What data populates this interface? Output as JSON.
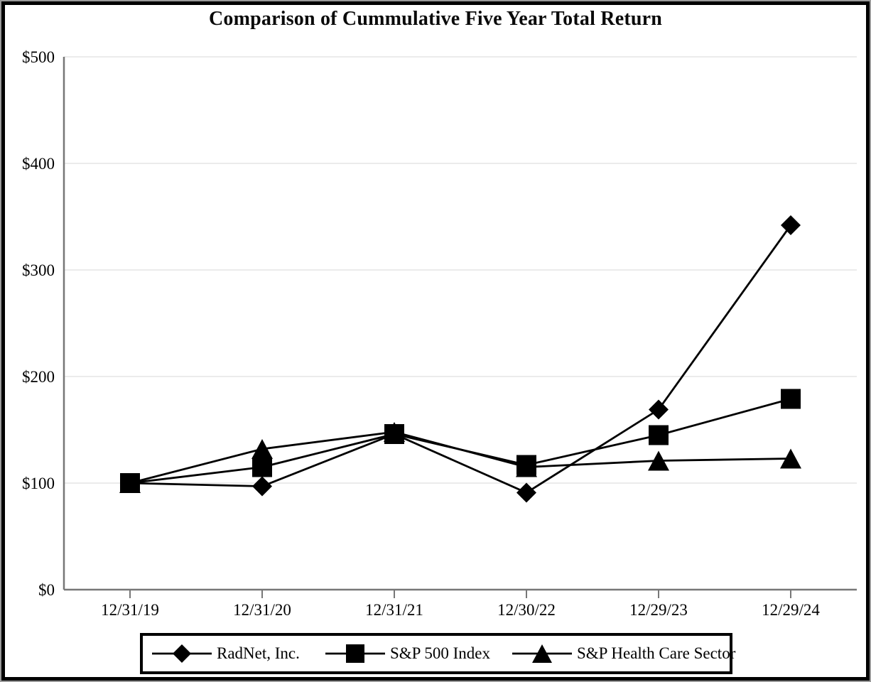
{
  "page": {
    "title": "Comparison of Cummulative Five Year Total Return"
  },
  "chart_data": {
    "type": "line",
    "title": "Comparison of Cummulative Five Year Total Return",
    "x_labels": [
      "12/31/19",
      "12/31/20",
      "12/31/21",
      "12/30/22",
      "12/29/23",
      "12/29/24"
    ],
    "y_ticks": [
      {
        "label": "$0",
        "value": 0
      },
      {
        "label": "$100",
        "value": 100
      },
      {
        "label": "$200",
        "value": 200
      },
      {
        "label": "$300",
        "value": 300
      },
      {
        "label": "$400",
        "value": 400
      },
      {
        "label": "$500",
        "value": 500
      }
    ],
    "ylim": [
      0,
      500
    ],
    "grid": "horizontal-only",
    "legend_position": "bottom",
    "series": [
      {
        "name": "RadNet, Inc.",
        "marker": "diamond",
        "color": "#000000",
        "values": [
          100,
          97,
          146,
          91,
          169,
          342
        ]
      },
      {
        "name": "S&P 500 Index",
        "marker": "square",
        "color": "#000000",
        "values": [
          100,
          115,
          146,
          117,
          145,
          179
        ]
      },
      {
        "name": "S&P Health Care Sector",
        "marker": "triangle",
        "color": "#000000",
        "values": [
          100,
          132,
          148,
          115,
          121,
          123
        ]
      }
    ]
  },
  "legend": {
    "entries": [
      {
        "label": "RadNet, Inc.",
        "marker": "diamond",
        "icon_name": "diamond-line-marker-icon"
      },
      {
        "label": "S&P 500 Index",
        "marker": "square",
        "icon_name": "square-line-marker-icon"
      },
      {
        "label": "S&P Health Care Sector",
        "marker": "triangle",
        "icon_name": "triangle-line-marker-icon"
      }
    ]
  },
  "colors": {
    "series": "#000000",
    "grid": "#e8e8e8",
    "axis": "#777777",
    "frame": "#000000",
    "text": "#000000"
  }
}
